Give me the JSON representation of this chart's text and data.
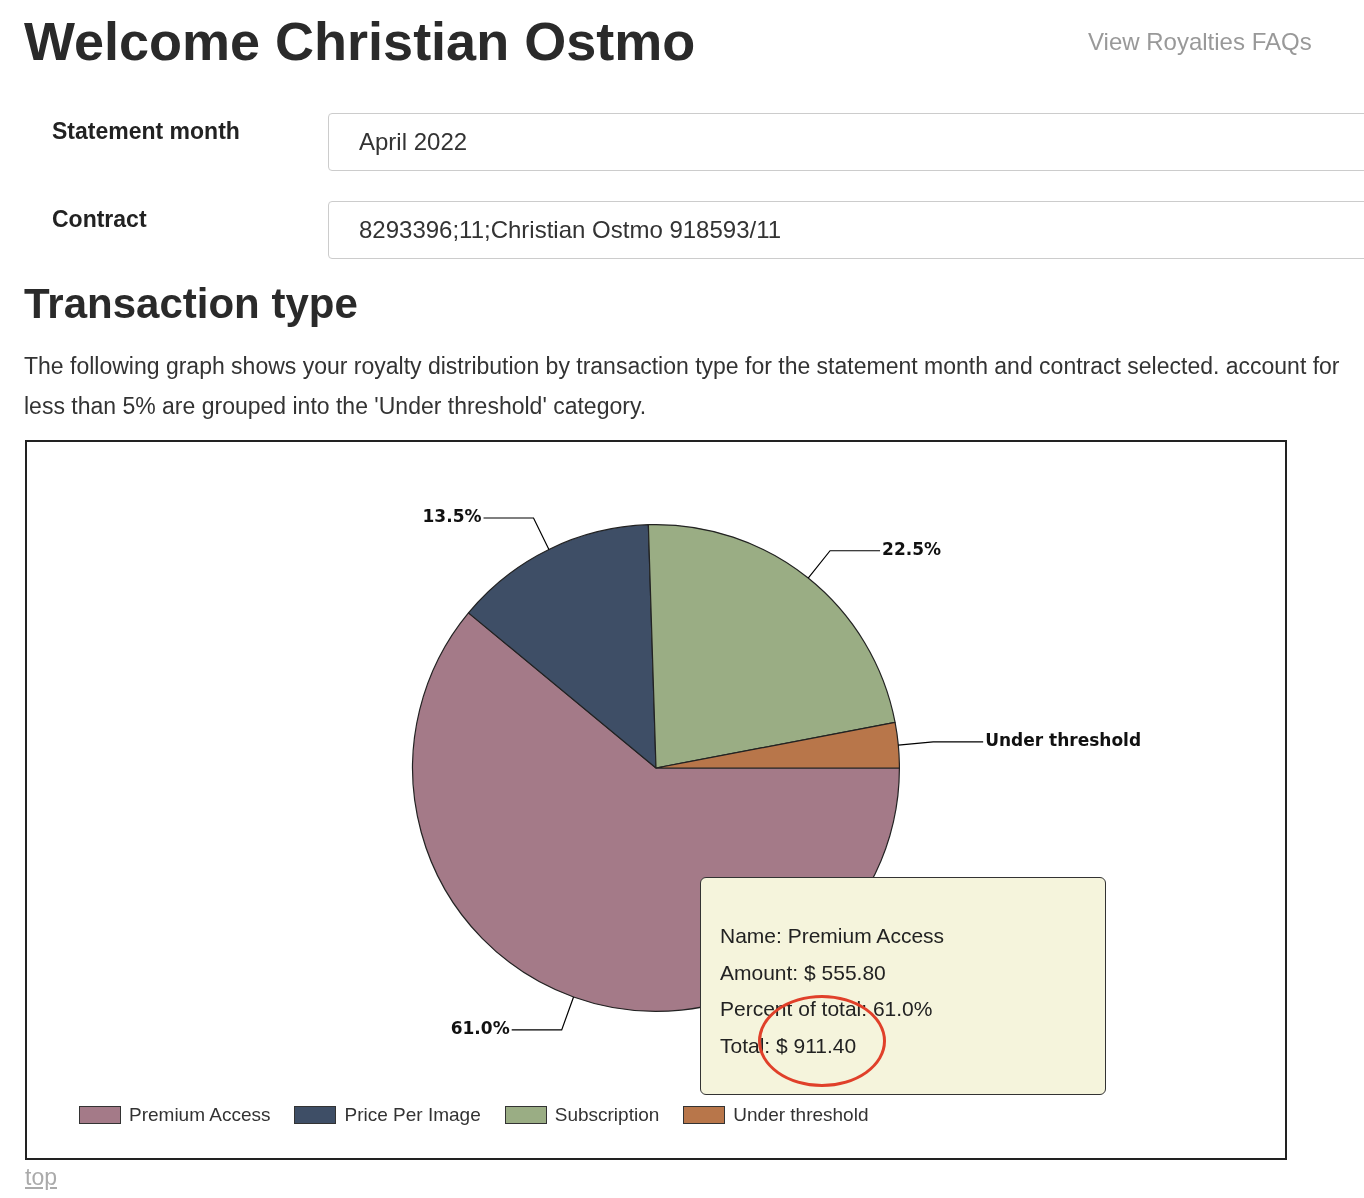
{
  "chart_data": {
    "type": "pie",
    "title": "Welcome Christian Ostmo",
    "subtitle": "Transaction type",
    "annotations": [
      "View Royalties FAQs",
      "Statement month",
      "April 2022",
      "Contract",
      "8293396;11;Christian Ostmo 918593/11",
      "The following graph shows your royalty distribution by transaction type for the statement month and contract selected. account for less than 5% are grouped into the 'Under threshold' category.",
      "Name: Premium Access",
      "Amount: $ 555.80",
      "Percent of total: 61.0%",
      "Total: $ 911.40",
      "top"
    ],
    "categories": [
      "Premium Access",
      "Price Per Image",
      "Subscription",
      "Under threshold"
    ],
    "values": [
      61.0,
      13.5,
      22.5,
      3.0
    ],
    "value_labels": [
      "61.0%",
      "13.5%",
      "22.5%",
      "Under threshold"
    ],
    "colors": [
      "#a47a88",
      "#3e4e66",
      "#9aad84",
      "#b8764a"
    ],
    "legend": "bottom"
  }
}
